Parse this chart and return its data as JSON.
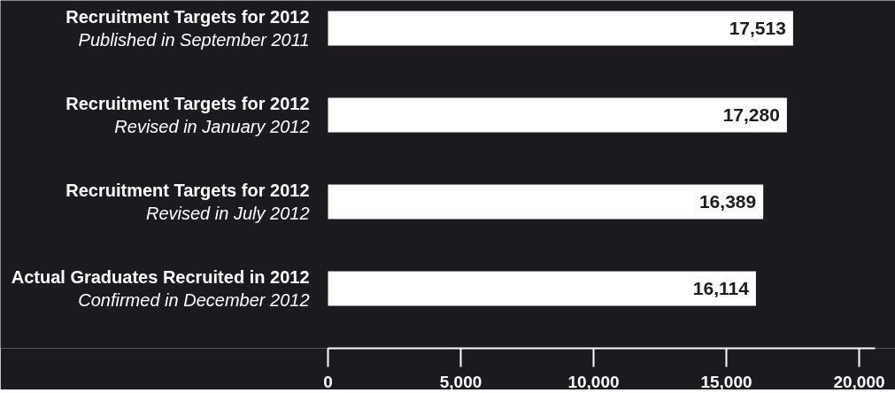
{
  "chart_data": {
    "type": "bar",
    "orientation": "horizontal",
    "categories": [
      "Recruitment Targets for 2012\nPublished in September 2011",
      "Recruitment Targets for 2012\nRevised in January 2012",
      "Recruitment Targets for 2012\nRevised in July 2012",
      "Actual Graduates Recruited in 2012\nConfirmed in December 2012"
    ],
    "values": [
      17513,
      17280,
      16389,
      16114
    ],
    "color": "#ffffff",
    "value_labels": [
      "17,513",
      "17,280",
      "16,389",
      "16,114"
    ],
    "xlim": [
      0,
      20600
    ],
    "xticks": [
      0,
      {
        "value": 5000,
        "label": "5,000"
      },
      {
        "value": 10000,
        "label": "10,000"
      },
      {
        "value": 15000,
        "label": "15,000"
      },
      {
        "value": 20000,
        "label": "20,000"
      }
    ]
  }
}
